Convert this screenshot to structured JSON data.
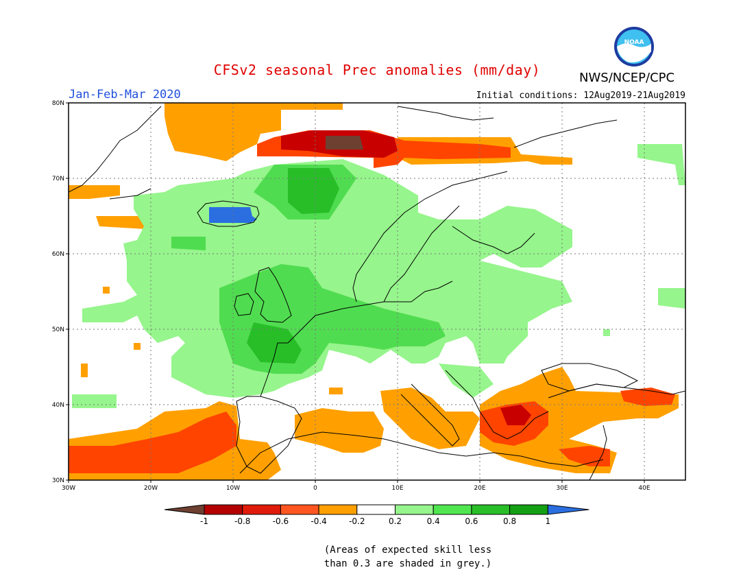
{
  "header": {
    "title": "CFSv2 seasonal Prec anomalies (mm/day)",
    "org": "NWS/NCEP/CPC",
    "season": "Jan-Feb-Mar 2020",
    "initial_conditions": "Initial conditions: 12Aug2019-21Aug2019",
    "logo_text": "NOAA"
  },
  "map": {
    "extent": {
      "lon_min": -30,
      "lon_max": 45,
      "lat_min": 30,
      "lat_max": 80
    },
    "lat_labels": [
      "30N",
      "40N",
      "50N",
      "60N",
      "70N",
      "80N"
    ],
    "lon_labels": [
      "30W",
      "20W",
      "10W",
      "0",
      "10E",
      "20E",
      "30E",
      "40E"
    ],
    "regions": [
      {
        "name": "arctic-positive-anomaly",
        "color": "#ffa000"
      },
      {
        "name": "barents-strong-negative",
        "color": "#ff4400"
      },
      {
        "name": "svalbard-core-negative",
        "color": "#c80000"
      },
      {
        "name": "norwegian-sea-wet",
        "color": "#96f58c"
      },
      {
        "name": "iceland-wet-core",
        "color": "#1f70d8"
      },
      {
        "name": "northwest-europe-wet",
        "color": "#50dc50"
      },
      {
        "name": "mediterranean-dry",
        "color": "#ffa000"
      },
      {
        "name": "aegean-dry-core",
        "color": "#c80000"
      }
    ]
  },
  "colorbar": {
    "labels": [
      "-1",
      "-0.8",
      "-0.6",
      "-0.4",
      "-0.2",
      "0.2",
      "0.4",
      "0.6",
      "0.8",
      "1"
    ],
    "colors": [
      "#6e4032",
      "#b40000",
      "#e01b0b",
      "#ff5520",
      "#ffa000",
      "#ffffff",
      "#96f58c",
      "#50e650",
      "#28be28",
      "#14a014",
      "#2a6ee0"
    ]
  },
  "note": {
    "line1": "(Areas of expected skill less",
    "line2": "than 0.3 are shaded in grey.)"
  }
}
